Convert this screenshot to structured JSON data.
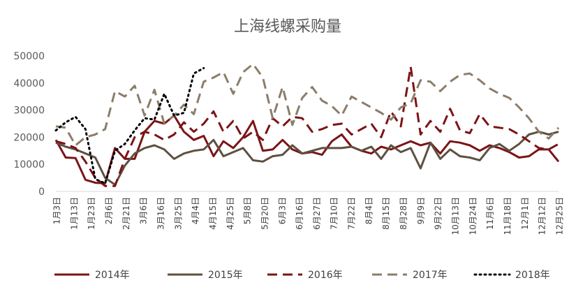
{
  "chart_data": {
    "type": "line",
    "title": "上海线螺采购量",
    "xlabel": "",
    "ylabel": "",
    "ylim": [
      0,
      50000
    ],
    "yticks": [
      "0",
      "10000",
      "20000",
      "30000",
      "40000",
      "50000"
    ],
    "grid": false,
    "legend_position": "bottom",
    "x_tick_labels": [
      "1月3日",
      "1月13日",
      "1月23日",
      "2月6日",
      "2月21日",
      "3月6日",
      "3月16日",
      "3月25日",
      "4月4日",
      "4月15日",
      "4月25日",
      "5月8日",
      "5月20日",
      "6月3日",
      "6月16日",
      "6月27日",
      "7月10日",
      "7月22日",
      "8月4日",
      "8月15日",
      "8月28日",
      "9月9日",
      "9月22日",
      "10月13日",
      "10月24日",
      "11月6日",
      "11月18日",
      "12月1日",
      "12月12日",
      "12月25日"
    ],
    "series": [
      {
        "name": "2014年",
        "color": "#7B1416",
        "style": "solid",
        "values": [
          19000,
          12500,
          12300,
          4300,
          3200,
          3000,
          16000,
          12000,
          12000,
          22000,
          26000,
          25000,
          28000,
          22000,
          19000,
          20500,
          13000,
          18500,
          16000,
          20000,
          26000,
          15000,
          15500,
          19000,
          15500,
          14000,
          14500,
          13500,
          18500,
          21000,
          16500,
          15000,
          14000,
          16500,
          15500,
          17000,
          18500,
          17000,
          18000,
          14000,
          18500,
          18000,
          17000,
          15000,
          17000,
          16000,
          14500,
          12500,
          13000,
          15500,
          15500,
          11000
        ]
      },
      {
        "name": "2015年",
        "color": "#5E5041",
        "style": "solid",
        "values": [
          18000,
          16500,
          15500,
          14000,
          12500,
          5000,
          2500,
          9500,
          14000,
          16000,
          17000,
          15500,
          12000,
          14000,
          15000,
          15500,
          19000,
          13000,
          14500,
          16000,
          11500,
          11000,
          13000,
          13500,
          17000,
          14000,
          15000,
          16000,
          16000,
          16000,
          16500,
          15000,
          16500,
          12000,
          17000,
          14500,
          16000,
          8500,
          18000,
          12000,
          15500,
          13000,
          12500,
          11500,
          16000,
          17500,
          15000,
          17500,
          21000,
          22000,
          21000,
          22000
        ]
      },
      {
        "name": "2016年",
        "color": "#7B1416",
        "style": "dashed",
        "values": [
          18500,
          17500,
          16000,
          11000,
          5000,
          2000,
          2000,
          12000,
          20000,
          22000,
          21000,
          19000,
          21000,
          25500,
          22000,
          25000,
          29500,
          22000,
          26000,
          19500,
          22000,
          19000,
          27000,
          24000,
          27500,
          27000,
          22000,
          23000,
          24500,
          25000,
          21000,
          23000,
          25000,
          20000,
          29500,
          24000,
          46000,
          21000,
          26000,
          22000,
          30500,
          22500,
          21500,
          28500,
          24000,
          23500,
          23000,
          21000,
          18500,
          16000,
          15500,
          17500
        ]
      },
      {
        "name": "2017年",
        "color": "#8B7D6B",
        "style": "dashed",
        "values": [
          24000,
          23500,
          17000,
          20000,
          21000,
          23000,
          37000,
          35000,
          39000,
          28000,
          37500,
          25000,
          28000,
          32000,
          28500,
          40500,
          42000,
          44000,
          36000,
          44000,
          47000,
          42000,
          27000,
          38500,
          24500,
          34500,
          38500,
          33500,
          31500,
          28000,
          35000,
          33000,
          31000,
          29000,
          26500,
          31000,
          32500,
          41000,
          40500,
          37000,
          40500,
          43000,
          43500,
          41000,
          38000,
          36000,
          34500,
          31000,
          27000,
          22000,
          19500,
          23500
        ]
      },
      {
        "name": "2018年",
        "color": "#000000",
        "style": "dotted",
        "values": [
          22500,
          25500,
          27500,
          23000,
          4500,
          3000,
          15000,
          17500,
          22500,
          27000,
          26500,
          36000,
          28000,
          29000,
          43500,
          45500,
          null,
          null,
          null,
          null,
          null,
          null,
          null,
          null,
          null,
          null,
          null,
          null,
          null,
          null,
          null,
          null,
          null,
          null,
          null,
          null,
          null,
          null,
          null,
          null,
          null,
          null,
          null,
          null,
          null,
          null,
          null,
          null,
          null,
          null,
          null,
          null
        ]
      }
    ]
  }
}
